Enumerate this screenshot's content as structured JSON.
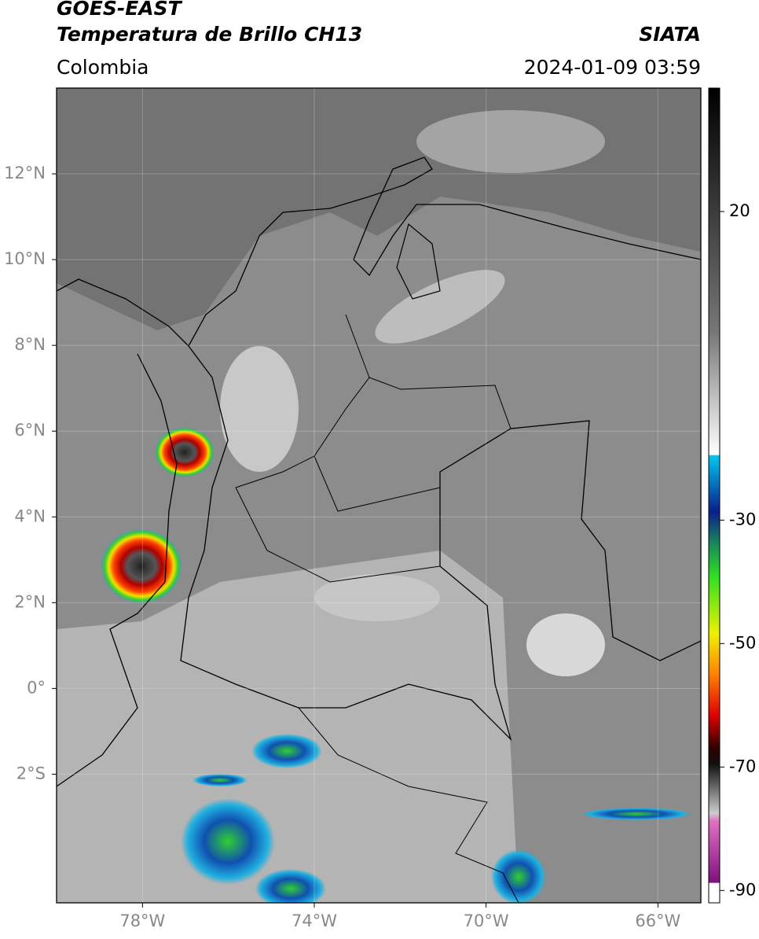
{
  "header": {
    "satellite": "GOES-EAST",
    "product": "Temperatura de Brillo CH13",
    "region": "Colombia",
    "source": "SIATA",
    "datetime": "2024-01-09 03:59"
  },
  "map": {
    "xlim": [
      -80,
      -65
    ],
    "ylim": [
      -5,
      14
    ],
    "xticks": [
      {
        "value": -78,
        "label": "78°W"
      },
      {
        "value": -74,
        "label": "74°W"
      },
      {
        "value": -70,
        "label": "70°W"
      },
      {
        "value": -66,
        "label": "66°W"
      }
    ],
    "yticks": [
      {
        "value": 12,
        "label": "12°N"
      },
      {
        "value": 10,
        "label": "10°N"
      },
      {
        "value": 8,
        "label": "8°N"
      },
      {
        "value": 6,
        "label": "6°N"
      },
      {
        "value": 4,
        "label": "4°N"
      },
      {
        "value": 2,
        "label": "2°N"
      },
      {
        "value": 0,
        "label": "0°"
      },
      {
        "value": -2,
        "label": "2°S"
      }
    ],
    "grid": true
  },
  "colorbar": {
    "lim": [
      -92,
      40
    ],
    "ticks": [
      20,
      -30,
      -50,
      -70,
      -90
    ]
  }
}
